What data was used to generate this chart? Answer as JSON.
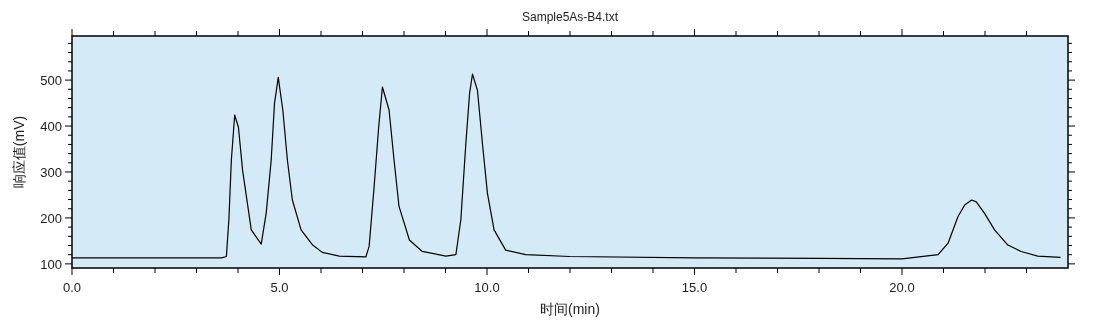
{
  "chart_data": {
    "type": "line",
    "title": "Sample5As-B4.txt",
    "xlabel": "时间(min)",
    "ylabel": "响应值(mV)",
    "series": [
      {
        "color": "#000000",
        "x": [
          0,
          1,
          2,
          3,
          3.6,
          3.72,
          3.78,
          3.84,
          3.92,
          4.01,
          4.11,
          4.32,
          4.56,
          4.68,
          4.8,
          4.88,
          4.97,
          5.08,
          5.19,
          5.31,
          5.52,
          5.8,
          6.03,
          6.44,
          7.08,
          7.16,
          7.28,
          7.39,
          7.48,
          7.64,
          7.76,
          7.88,
          8.13,
          8.44,
          9.01,
          9.25,
          9.37,
          9.49,
          9.58,
          9.65,
          9.77,
          9.89,
          10.01,
          10.17,
          10.45,
          10.93,
          12,
          15,
          18,
          20,
          20.87,
          21.11,
          21.35,
          21.51,
          21.68,
          21.79,
          21.99,
          22.23,
          22.55,
          22.87,
          23.27,
          23.82
        ],
        "values": [
          113,
          113,
          113,
          113,
          113,
          116,
          196,
          326,
          424,
          398,
          304,
          174,
          143,
          211,
          326,
          450,
          506,
          435,
          326,
          239,
          174,
          141,
          125,
          117,
          115,
          138,
          268,
          398,
          485,
          435,
          326,
          225,
          152,
          127,
          117,
          120,
          196,
          362,
          471,
          513,
          478,
          362,
          254,
          174,
          130,
          120,
          116,
          113,
          112,
          111,
          120,
          145,
          203,
          228,
          239,
          235,
          210,
          174,
          141,
          127,
          117,
          114
        ]
      }
    ],
    "xlim": [
      0,
      24
    ],
    "ylim": [
      91,
      596
    ],
    "xticks": [
      {
        "value": 0,
        "label": "0.0"
      },
      {
        "value": 1,
        "label": null
      },
      {
        "value": 2,
        "label": null
      },
      {
        "value": 3,
        "label": null
      },
      {
        "value": 4,
        "label": null
      },
      {
        "value": 5,
        "label": "5.0"
      },
      {
        "value": 6,
        "label": null
      },
      {
        "value": 7,
        "label": null
      },
      {
        "value": 8,
        "label": null
      },
      {
        "value": 9,
        "label": null
      },
      {
        "value": 10,
        "label": "10.0"
      },
      {
        "value": 11,
        "label": null
      },
      {
        "value": 12,
        "label": null
      },
      {
        "value": 13,
        "label": null
      },
      {
        "value": 14,
        "label": null
      },
      {
        "value": 15,
        "label": "15.0"
      },
      {
        "value": 16,
        "label": null
      },
      {
        "value": 17,
        "label": null
      },
      {
        "value": 18,
        "label": null
      },
      {
        "value": 19,
        "label": null
      },
      {
        "value": 20,
        "label": "20.0"
      },
      {
        "value": 21,
        "label": null
      },
      {
        "value": 22,
        "label": null
      },
      {
        "value": 23,
        "label": null
      }
    ],
    "yticks": [
      100,
      {
        "value": 120,
        "label": null
      },
      {
        "value": 140,
        "label": null
      },
      {
        "value": 160,
        "label": null
      },
      {
        "value": 180,
        "label": null
      },
      200,
      {
        "value": 220,
        "label": null
      },
      {
        "value": 240,
        "label": null
      },
      {
        "value": 260,
        "label": null
      },
      {
        "value": 280,
        "label": null
      },
      300,
      {
        "value": 320,
        "label": null
      },
      {
        "value": 340,
        "label": null
      },
      {
        "value": 360,
        "label": null
      },
      {
        "value": 380,
        "label": null
      },
      400,
      {
        "value": 420,
        "label": null
      },
      {
        "value": 440,
        "label": null
      },
      {
        "value": 460,
        "label": null
      },
      {
        "value": 480,
        "label": null
      },
      500,
      {
        "value": 520,
        "label": null
      },
      {
        "value": 540,
        "label": null
      },
      {
        "value": 560,
        "label": null
      },
      {
        "value": 580,
        "label": null
      }
    ],
    "grid": false,
    "marker": "none",
    "line_style": "solid"
  }
}
